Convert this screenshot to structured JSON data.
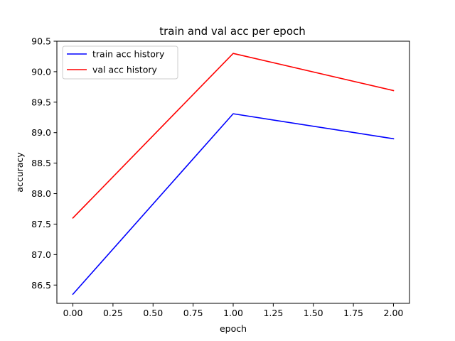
{
  "chart_data": {
    "type": "line",
    "title": "train and val acc per epoch",
    "xlabel": "epoch",
    "ylabel": "accuracy",
    "xlim": [
      -0.1,
      2.1
    ],
    "ylim": [
      86.2,
      90.5
    ],
    "xticks": [
      "0.00",
      "0.25",
      "0.50",
      "0.75",
      "1.00",
      "1.25",
      "1.50",
      "1.75",
      "2.00"
    ],
    "yticks": [
      "86.5",
      "87.0",
      "87.5",
      "88.0",
      "88.5",
      "89.0",
      "89.5",
      "90.0",
      "90.5"
    ],
    "grid": false,
    "legend_position": "upper-left",
    "x": [
      0,
      1,
      2
    ],
    "series": [
      {
        "name": "train acc history",
        "color": "#0000ff",
        "values": [
          86.35,
          89.31,
          88.9
        ]
      },
      {
        "name": "val acc history",
        "color": "#ff0000",
        "values": [
          87.6,
          90.3,
          89.69
        ]
      }
    ]
  }
}
